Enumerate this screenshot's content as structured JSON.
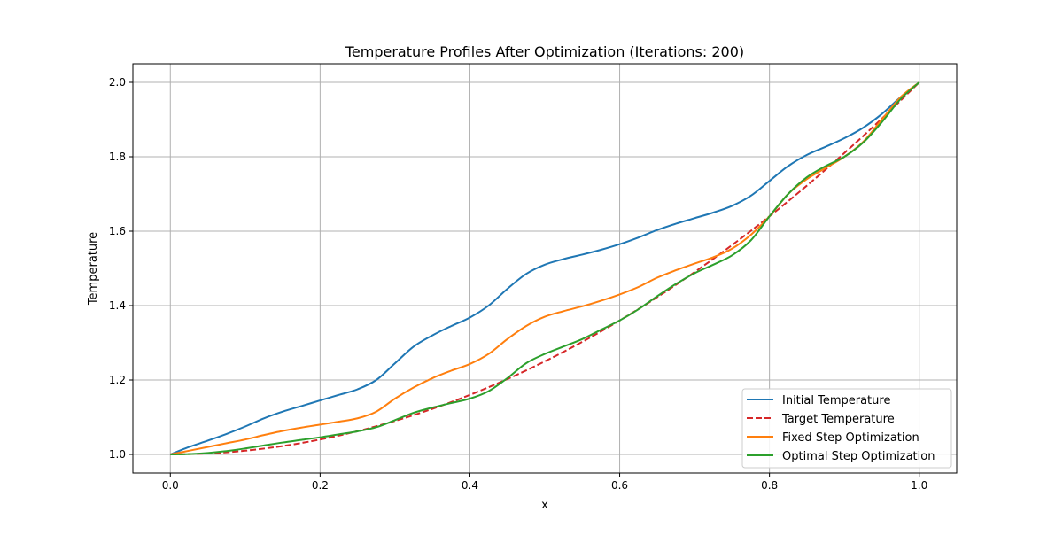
{
  "chart_data": {
    "type": "line",
    "title": "Temperature Profiles After Optimization (Iterations: 200)",
    "xlabel": "x",
    "ylabel": "Temperature",
    "xlim": [
      -0.05,
      1.05
    ],
    "ylim": [
      0.95,
      2.05
    ],
    "xticks": [
      0.0,
      0.2,
      0.4,
      0.6,
      0.8,
      1.0
    ],
    "xtick_labels": [
      "0.0",
      "0.2",
      "0.4",
      "0.6",
      "0.8",
      "1.0"
    ],
    "yticks": [
      1.0,
      1.2,
      1.4,
      1.6,
      1.8,
      2.0
    ],
    "ytick_labels": [
      "1.0",
      "1.2",
      "1.4",
      "1.6",
      "1.8",
      "2.0"
    ],
    "grid": true,
    "legend_position": "bottom-right",
    "series": [
      {
        "name": "Initial Temperature",
        "color": "#1f77b4",
        "style": "solid",
        "x": [
          0.0,
          0.025,
          0.05,
          0.075,
          0.1,
          0.125,
          0.15,
          0.175,
          0.2,
          0.225,
          0.25,
          0.275,
          0.3,
          0.325,
          0.35,
          0.375,
          0.4,
          0.425,
          0.45,
          0.475,
          0.5,
          0.525,
          0.55,
          0.575,
          0.6,
          0.625,
          0.65,
          0.675,
          0.7,
          0.725,
          0.75,
          0.775,
          0.8,
          0.825,
          0.85,
          0.875,
          0.9,
          0.925,
          0.95,
          0.975,
          1.0
        ],
        "y": [
          1.0,
          1.02,
          1.037,
          1.055,
          1.075,
          1.097,
          1.115,
          1.13,
          1.145,
          1.16,
          1.175,
          1.2,
          1.245,
          1.29,
          1.32,
          1.345,
          1.368,
          1.4,
          1.445,
          1.485,
          1.51,
          1.525,
          1.537,
          1.55,
          1.565,
          1.583,
          1.603,
          1.62,
          1.635,
          1.65,
          1.668,
          1.695,
          1.735,
          1.775,
          1.805,
          1.827,
          1.85,
          1.878,
          1.915,
          1.96,
          2.0
        ]
      },
      {
        "name": "Target Temperature",
        "color": "#d62728",
        "style": "dashed",
        "x": [
          0.0,
          0.05,
          0.1,
          0.15,
          0.2,
          0.25,
          0.3,
          0.35,
          0.4,
          0.45,
          0.5,
          0.55,
          0.6,
          0.65,
          0.7,
          0.75,
          0.8,
          0.85,
          0.9,
          0.95,
          1.0
        ],
        "y": [
          1.0,
          1.0025,
          1.01,
          1.0225,
          1.04,
          1.0625,
          1.09,
          1.1225,
          1.16,
          1.2025,
          1.25,
          1.3025,
          1.36,
          1.4225,
          1.49,
          1.5625,
          1.64,
          1.7225,
          1.81,
          1.9025,
          2.0
        ]
      },
      {
        "name": "Fixed Step Optimization",
        "color": "#ff7f0e",
        "style": "solid",
        "x": [
          0.0,
          0.025,
          0.05,
          0.075,
          0.1,
          0.125,
          0.15,
          0.175,
          0.2,
          0.225,
          0.25,
          0.275,
          0.3,
          0.325,
          0.35,
          0.375,
          0.4,
          0.425,
          0.45,
          0.475,
          0.5,
          0.525,
          0.55,
          0.575,
          0.6,
          0.625,
          0.65,
          0.675,
          0.7,
          0.725,
          0.75,
          0.775,
          0.8,
          0.825,
          0.85,
          0.875,
          0.9,
          0.925,
          0.95,
          0.975,
          1.0
        ],
        "y": [
          1.0,
          1.01,
          1.02,
          1.03,
          1.04,
          1.052,
          1.063,
          1.072,
          1.08,
          1.088,
          1.097,
          1.115,
          1.15,
          1.18,
          1.205,
          1.225,
          1.243,
          1.27,
          1.31,
          1.345,
          1.37,
          1.385,
          1.398,
          1.413,
          1.43,
          1.45,
          1.475,
          1.495,
          1.513,
          1.53,
          1.553,
          1.59,
          1.64,
          1.7,
          1.74,
          1.77,
          1.8,
          1.84,
          1.9,
          1.96,
          2.0
        ]
      },
      {
        "name": "Optimal Step Optimization",
        "color": "#2ca02c",
        "style": "solid",
        "x": [
          0.0,
          0.025,
          0.05,
          0.075,
          0.1,
          0.125,
          0.15,
          0.175,
          0.2,
          0.225,
          0.25,
          0.275,
          0.3,
          0.325,
          0.35,
          0.375,
          0.4,
          0.425,
          0.45,
          0.475,
          0.5,
          0.525,
          0.55,
          0.575,
          0.6,
          0.625,
          0.65,
          0.675,
          0.7,
          0.725,
          0.75,
          0.775,
          0.8,
          0.825,
          0.85,
          0.875,
          0.9,
          0.925,
          0.95,
          0.975,
          1.0
        ],
        "y": [
          1.0,
          1.001,
          1.004,
          1.009,
          1.016,
          1.024,
          1.032,
          1.039,
          1.046,
          1.054,
          1.062,
          1.073,
          1.092,
          1.112,
          1.126,
          1.138,
          1.15,
          1.17,
          1.205,
          1.245,
          1.27,
          1.29,
          1.31,
          1.335,
          1.36,
          1.39,
          1.425,
          1.458,
          1.487,
          1.51,
          1.535,
          1.575,
          1.64,
          1.7,
          1.745,
          1.775,
          1.8,
          1.838,
          1.893,
          1.955,
          2.0
        ]
      }
    ]
  }
}
